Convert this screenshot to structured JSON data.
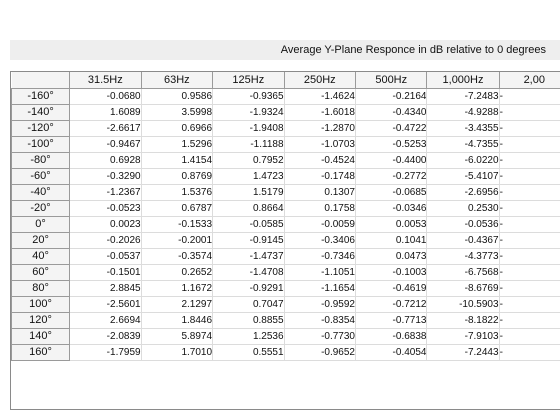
{
  "title": "Average Y-Plane Responce in dB relative to 0 degrees",
  "columns": [
    "31.5Hz",
    "63Hz",
    "125Hz",
    "250Hz",
    "500Hz",
    "1,000Hz",
    "2,00"
  ],
  "rows": [
    {
      "angle": "-160°",
      "values": [
        "-0.0680",
        "0.9586",
        "-0.9365",
        "-1.4624",
        "-0.2164",
        "-7.2483",
        "-"
      ]
    },
    {
      "angle": "-140°",
      "values": [
        "1.6089",
        "3.5998",
        "-1.9324",
        "-1.6018",
        "-0.4340",
        "-4.9288",
        "-"
      ]
    },
    {
      "angle": "-120°",
      "values": [
        "-2.6617",
        "0.6966",
        "-1.9408",
        "-1.2870",
        "-0.4722",
        "-3.4355",
        "-"
      ]
    },
    {
      "angle": "-100°",
      "values": [
        "-0.9467",
        "1.5296",
        "-1.1188",
        "-1.0703",
        "-0.5253",
        "-4.7355",
        "-"
      ]
    },
    {
      "angle": "-80°",
      "values": [
        "0.6928",
        "1.4154",
        "0.7952",
        "-0.4524",
        "-0.4400",
        "-6.0220",
        "-"
      ]
    },
    {
      "angle": "-60°",
      "values": [
        "-0.3290",
        "0.8769",
        "1.4723",
        "-0.1748",
        "-0.2772",
        "-5.4107",
        "-"
      ]
    },
    {
      "angle": "-40°",
      "values": [
        "-1.2367",
        "1.5376",
        "1.5179",
        "0.1307",
        "-0.0685",
        "-2.6956",
        "-"
      ]
    },
    {
      "angle": "-20°",
      "values": [
        "-0.0523",
        "0.6787",
        "0.8664",
        "0.1758",
        "-0.0346",
        "0.2530",
        "-"
      ]
    },
    {
      "angle": "0°",
      "values": [
        "0.0023",
        "-0.1533",
        "-0.0585",
        "-0.0059",
        "0.0053",
        "-0.0536",
        "-"
      ]
    },
    {
      "angle": "20°",
      "values": [
        "-0.2026",
        "-0.2001",
        "-0.9145",
        "-0.3406",
        "0.1041",
        "-0.4367",
        "-"
      ]
    },
    {
      "angle": "40°",
      "values": [
        "-0.0537",
        "-0.3574",
        "-1.4737",
        "-0.7346",
        "0.0473",
        "-4.3773",
        "-"
      ]
    },
    {
      "angle": "60°",
      "values": [
        "-0.1501",
        "0.2652",
        "-1.4708",
        "-1.1051",
        "-0.1003",
        "-6.7568",
        "-"
      ]
    },
    {
      "angle": "80°",
      "values": [
        "2.8845",
        "1.1672",
        "-0.9291",
        "-1.1654",
        "-0.4619",
        "-8.6769",
        "-"
      ]
    },
    {
      "angle": "100°",
      "values": [
        "-2.5601",
        "2.1297",
        "0.7047",
        "-0.9592",
        "-0.7212",
        "-10.5903",
        "-"
      ]
    },
    {
      "angle": "120°",
      "values": [
        "2.6694",
        "1.8446",
        "0.8855",
        "-0.8354",
        "-0.7713",
        "-8.1822",
        "-"
      ]
    },
    {
      "angle": "140°",
      "values": [
        "-2.0839",
        "5.8974",
        "1.2536",
        "-0.7730",
        "-0.6838",
        "-7.9103",
        "-"
      ]
    },
    {
      "angle": "160°",
      "values": [
        "-1.7959",
        "1.7010",
        "0.5551",
        "-0.9652",
        "-0.4054",
        "-7.2443",
        "-"
      ]
    }
  ]
}
